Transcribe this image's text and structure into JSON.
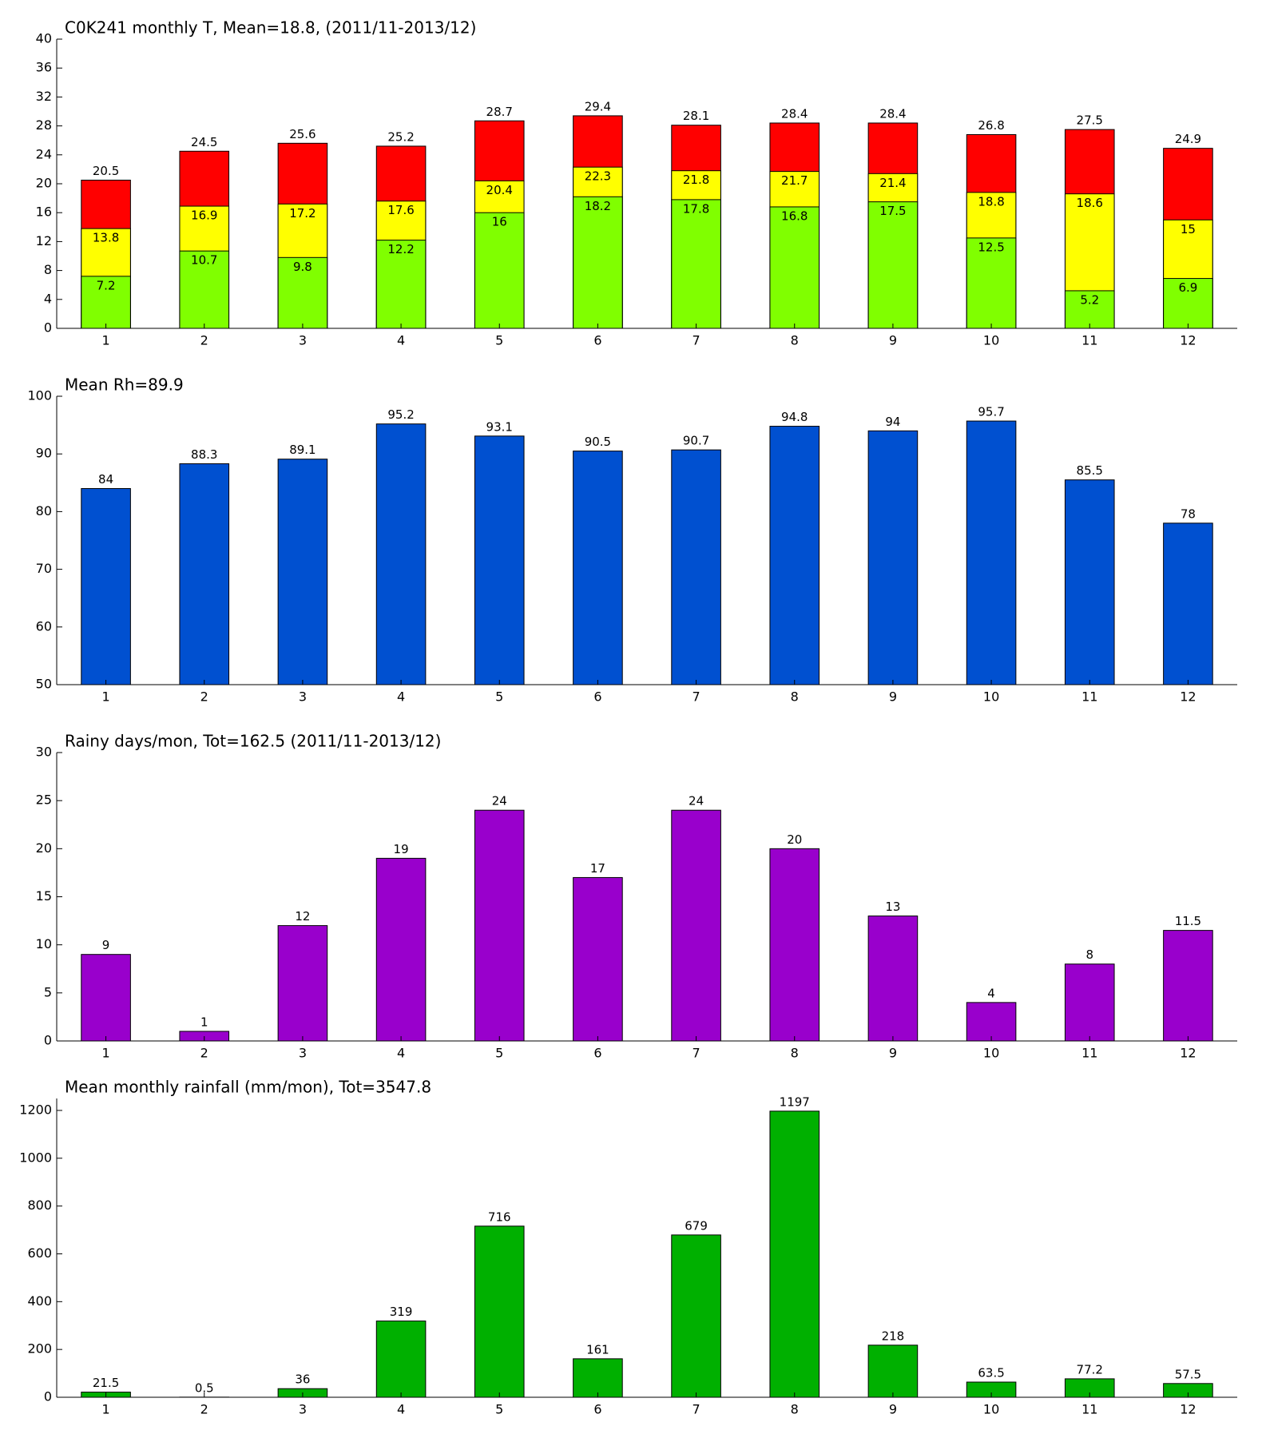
{
  "chart_data": [
    {
      "type": "bar",
      "barmode": "overlay",
      "title": "C0K241 monthly T, Mean=18.8, (2011/11-2013/12)",
      "categories": [
        "1",
        "2",
        "3",
        "4",
        "5",
        "6",
        "7",
        "8",
        "9",
        "10",
        "11",
        "12"
      ],
      "series": [
        {
          "color": "#ff0000",
          "values": [
            20.5,
            24.5,
            25.6,
            25.2,
            28.7,
            29.4,
            28.1,
            28.4,
            28.4,
            26.8,
            27.5,
            24.9
          ]
        },
        {
          "color": "#ffff00",
          "values": [
            13.8,
            16.9,
            17.2,
            17.6,
            20.4,
            22.3,
            21.8,
            21.7,
            21.4,
            18.8,
            18.6,
            15
          ]
        },
        {
          "color": "#80ff00",
          "values": [
            7.2,
            10.7,
            9.8,
            12.2,
            16,
            18.2,
            17.8,
            16.8,
            17.5,
            12.5,
            5.2,
            6.9
          ]
        }
      ],
      "ylim": [
        0,
        40
      ],
      "yticks": [
        0,
        4,
        8,
        12,
        16,
        20,
        24,
        28,
        32,
        36,
        40
      ]
    },
    {
      "type": "bar",
      "title": "Mean Rh=89.9",
      "categories": [
        "1",
        "2",
        "3",
        "4",
        "5",
        "6",
        "7",
        "8",
        "9",
        "10",
        "11",
        "12"
      ],
      "values": [
        84,
        88.3,
        89.1,
        95.2,
        93.1,
        90.5,
        90.7,
        94.8,
        94,
        95.7,
        85.5,
        78
      ],
      "color": "#0050d0",
      "ylim": [
        50,
        100
      ],
      "yticks": [
        50,
        60,
        70,
        80,
        90,
        100
      ]
    },
    {
      "type": "bar",
      "title": "Rainy days/mon, Tot=162.5 (2011/11-2013/12)",
      "categories": [
        "1",
        "2",
        "3",
        "4",
        "5",
        "6",
        "7",
        "8",
        "9",
        "10",
        "11",
        "12"
      ],
      "values": [
        9,
        1,
        12,
        19,
        24,
        17,
        24,
        20,
        13,
        4,
        8,
        11.5
      ],
      "color": "#9900cc",
      "ylim": [
        0,
        30
      ],
      "yticks": [
        0,
        5,
        10,
        15,
        20,
        25,
        30
      ]
    },
    {
      "type": "bar",
      "title": "Mean monthly rainfall (mm/mon), Tot=3547.8",
      "categories": [
        "1",
        "2",
        "3",
        "4",
        "5",
        "6",
        "7",
        "8",
        "9",
        "10",
        "11",
        "12"
      ],
      "values": [
        21.5,
        0.5,
        36,
        319,
        716,
        161,
        679,
        1197,
        218,
        63.5,
        77.2,
        57.5
      ],
      "color": "#00b000",
      "ylim": [
        0,
        1250
      ],
      "yticks": [
        0,
        200,
        400,
        600,
        800,
        1000,
        1200
      ]
    }
  ]
}
